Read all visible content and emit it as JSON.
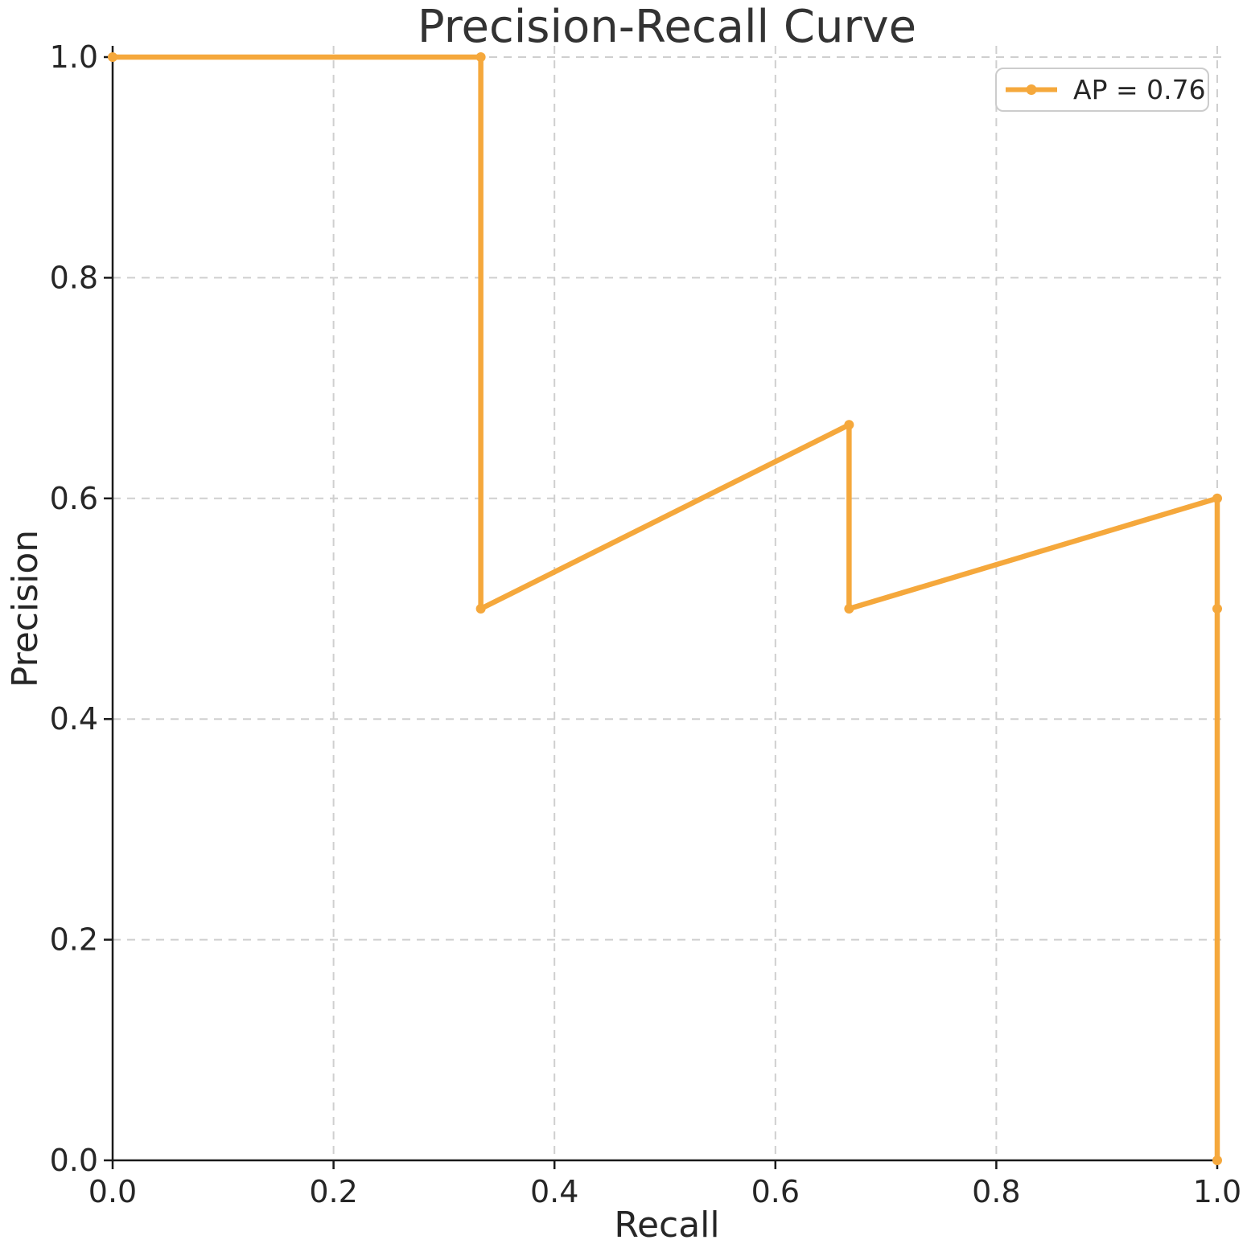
{
  "figure": {
    "title": "Precision-Recall Curve",
    "xlabel": "Recall",
    "ylabel": "Precision",
    "legend": {
      "label": "AP = 0.76"
    }
  },
  "colors": {
    "line": "#F5A83C",
    "grid": "#CFCFCF",
    "spine": "#1A1A1A",
    "title_text": "#333333",
    "tick_text": "#262626",
    "legend_border": "#CCCCCC",
    "background": "#FFFFFF"
  },
  "chart_data": {
    "type": "line",
    "title": "Precision-Recall Curve",
    "xlabel": "Recall",
    "ylabel": "Precision",
    "xlim": [
      0.0,
      1.0
    ],
    "ylim": [
      0.0,
      1.0
    ],
    "xticks": [
      0.0,
      0.2,
      0.4,
      0.6,
      0.8,
      1.0
    ],
    "yticks": [
      0.0,
      0.2,
      0.4,
      0.6,
      0.8,
      1.0
    ],
    "grid": true,
    "grid_style": "dashed",
    "legend_position": "upper right",
    "series": [
      {
        "name": "AP = 0.76",
        "average_precision": 0.76,
        "color": "#F5A83C",
        "marker": "circle",
        "points": [
          {
            "recall": 0.0,
            "precision": 1.0
          },
          {
            "recall": 0.3333,
            "precision": 1.0
          },
          {
            "recall": 0.3333,
            "precision": 0.5
          },
          {
            "recall": 0.6667,
            "precision": 0.6667
          },
          {
            "recall": 0.6667,
            "precision": 0.5
          },
          {
            "recall": 1.0,
            "precision": 0.6
          },
          {
            "recall": 1.0,
            "precision": 0.5
          },
          {
            "recall": 1.0,
            "precision": 0.0
          }
        ]
      }
    ]
  }
}
